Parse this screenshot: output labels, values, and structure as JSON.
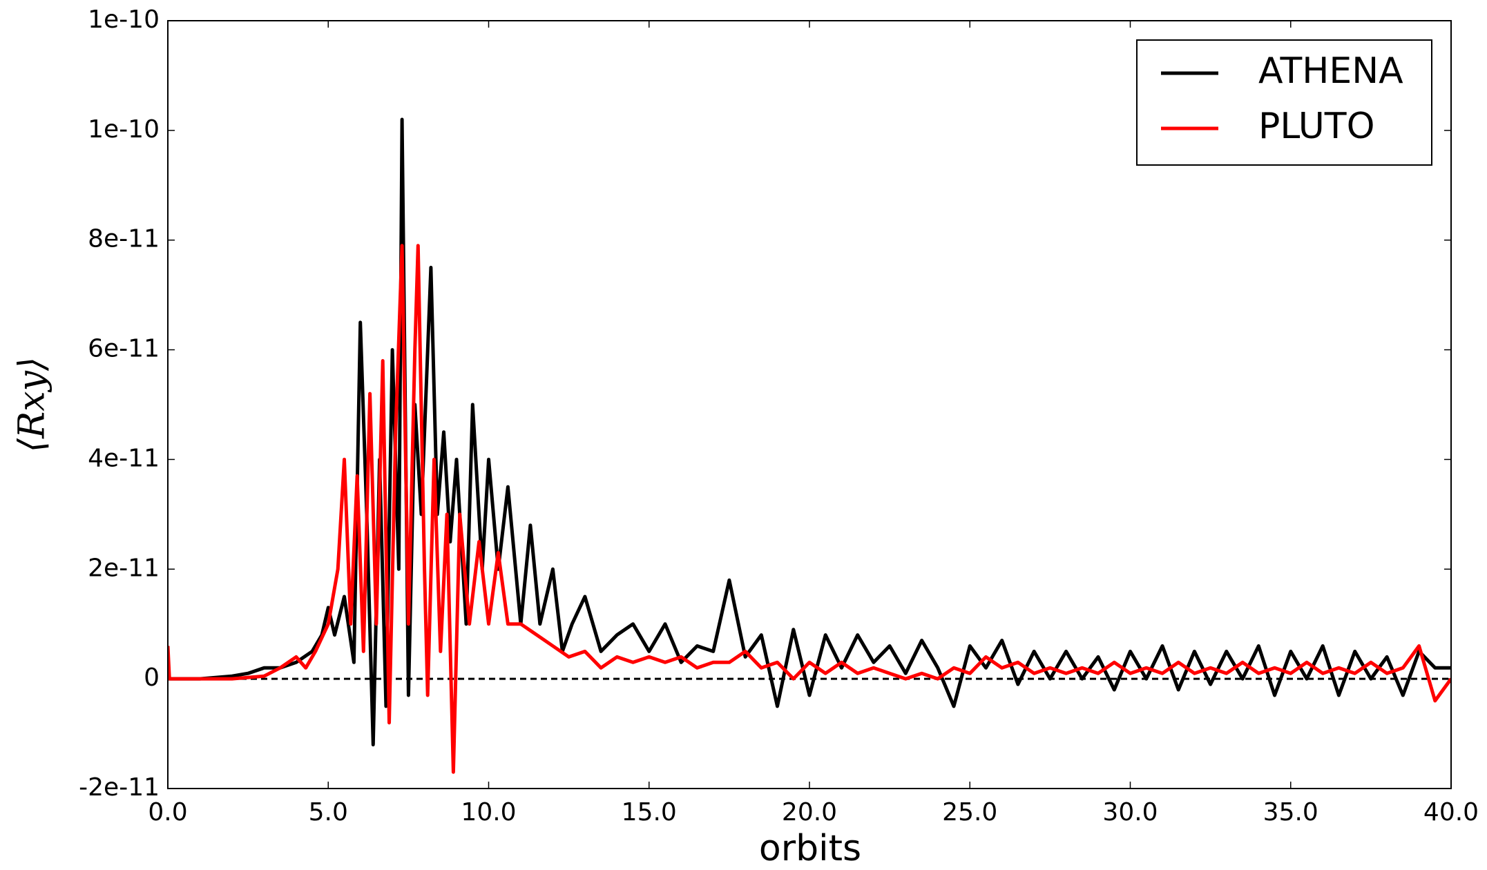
{
  "chart_data": {
    "type": "line",
    "xlabel": "orbits",
    "ylabel": "⟨Rxy⟩",
    "xlim": [
      0,
      40
    ],
    "ylim": [
      -2e-11,
      1.2e-10
    ],
    "xticks": [
      {
        "value": 0,
        "label": "0.0"
      },
      {
        "value": 5,
        "label": "5.0"
      },
      {
        "value": 10,
        "label": "10.0"
      },
      {
        "value": 15,
        "label": "15.0"
      },
      {
        "value": 20,
        "label": "20.0"
      },
      {
        "value": 25,
        "label": "25.0"
      },
      {
        "value": 30,
        "label": "30.0"
      },
      {
        "value": 35,
        "label": "35.0"
      },
      {
        "value": 40,
        "label": "40.0"
      }
    ],
    "yticks": [
      -2e-11,
      0,
      2e-11,
      4e-11,
      6e-11,
      8e-11,
      1e-10,
      {
        "value": 1.2e-10,
        "label": "1e-10"
      }
    ],
    "hlines": [
      0
    ],
    "legend": "upper right",
    "series": [
      {
        "name": "ATHENA",
        "color": "#000000",
        "x": [
          0,
          1,
          2,
          2.5,
          3,
          3.5,
          4,
          4.5,
          4.8,
          5,
          5.2,
          5.5,
          5.8,
          6,
          6.2,
          6.4,
          6.6,
          6.8,
          7,
          7.2,
          7.3,
          7.5,
          7.7,
          7.9,
          8.2,
          8.4,
          8.6,
          8.8,
          9,
          9.3,
          9.5,
          9.8,
          10,
          10.3,
          10.6,
          11,
          11.3,
          11.6,
          12,
          12.3,
          12.6,
          13,
          13.5,
          14,
          14.5,
          15,
          15.5,
          16,
          16.5,
          17,
          17.5,
          18,
          18.5,
          19,
          19.5,
          20,
          20.5,
          21,
          21.5,
          22,
          22.5,
          23,
          23.5,
          24,
          24.5,
          25,
          25.5,
          26,
          26.5,
          27,
          27.5,
          28,
          28.5,
          29,
          29.5,
          30,
          30.5,
          31,
          31.5,
          32,
          32.5,
          33,
          33.5,
          34,
          34.5,
          35,
          35.5,
          36,
          36.5,
          37,
          37.5,
          38,
          38.5,
          39,
          39.5,
          40
        ],
        "values": [
          0,
          0,
          5e-13,
          1e-12,
          2e-12,
          2e-12,
          3e-12,
          5e-12,
          8e-12,
          1.3e-11,
          8e-12,
          1.5e-11,
          3e-12,
          6.5e-11,
          3e-11,
          -1.2e-11,
          4e-11,
          -5e-12,
          6e-11,
          2e-11,
          1.02e-10,
          -3e-12,
          5e-11,
          3e-11,
          7.5e-11,
          3e-11,
          4.5e-11,
          2.5e-11,
          4e-11,
          1e-11,
          5e-11,
          2e-11,
          4e-11,
          2e-11,
          3.5e-11,
          1e-11,
          2.8e-11,
          1e-11,
          2e-11,
          5e-12,
          1e-11,
          1.5e-11,
          5e-12,
          8e-12,
          1e-11,
          5e-12,
          1e-11,
          3e-12,
          6e-12,
          5e-12,
          1.8e-11,
          4e-12,
          8e-12,
          -5e-12,
          9e-12,
          -3e-12,
          8e-12,
          2e-12,
          8e-12,
          3e-12,
          6e-12,
          1e-12,
          7e-12,
          2e-12,
          -5e-12,
          6e-12,
          2e-12,
          7e-12,
          -1e-12,
          5e-12,
          0,
          5e-12,
          0,
          4e-12,
          -2e-12,
          5e-12,
          0,
          6e-12,
          -2e-12,
          5e-12,
          -1e-12,
          5e-12,
          0,
          6e-12,
          -3e-12,
          5e-12,
          0,
          6e-12,
          -3e-12,
          5e-12,
          0,
          4e-12,
          -3e-12,
          5e-12,
          2e-12,
          2e-12
        ]
      },
      {
        "name": "PLUTO",
        "color": "#ff0000",
        "x": [
          0,
          0.05,
          1,
          2,
          3,
          3.5,
          4,
          4.3,
          4.6,
          5,
          5.3,
          5.5,
          5.7,
          5.9,
          6.1,
          6.3,
          6.5,
          6.7,
          6.9,
          7.1,
          7.3,
          7.5,
          7.7,
          7.8,
          8,
          8.1,
          8.3,
          8.5,
          8.7,
          8.9,
          9.1,
          9.4,
          9.7,
          10,
          10.3,
          10.6,
          11,
          11.5,
          12,
          12.5,
          13,
          13.5,
          14,
          14.5,
          15,
          15.5,
          16,
          16.5,
          17,
          17.5,
          18,
          18.5,
          19,
          19.5,
          20,
          20.5,
          21,
          21.5,
          22,
          22.5,
          23,
          23.5,
          24,
          24.5,
          25,
          25.5,
          26,
          26.5,
          27,
          27.5,
          28,
          28.5,
          29,
          29.5,
          30,
          30.5,
          31,
          31.5,
          32,
          32.5,
          33,
          33.5,
          34,
          34.5,
          35,
          35.5,
          36,
          36.5,
          37,
          37.5,
          38,
          38.5,
          39,
          39.5,
          40
        ],
        "values": [
          6e-12,
          0,
          0,
          0,
          5e-13,
          2e-12,
          4e-12,
          2e-12,
          5e-12,
          1e-11,
          2e-11,
          4e-11,
          1e-11,
          3.7e-11,
          5e-12,
          5.2e-11,
          1e-11,
          5.8e-11,
          -8e-12,
          4.5e-11,
          7.9e-11,
          1e-11,
          6e-11,
          7.9e-11,
          2e-11,
          -3e-12,
          4e-11,
          5e-12,
          3e-11,
          -1.7e-11,
          3e-11,
          1e-11,
          2.5e-11,
          1e-11,
          2.3e-11,
          1e-11,
          1e-11,
          8e-12,
          6e-12,
          4e-12,
          5e-12,
          2e-12,
          4e-12,
          3e-12,
          4e-12,
          3e-12,
          4e-12,
          2e-12,
          3e-12,
          3e-12,
          5e-12,
          2e-12,
          3e-12,
          0,
          3e-12,
          1e-12,
          3e-12,
          1e-12,
          2e-12,
          1e-12,
          0,
          1e-12,
          0,
          2e-12,
          1e-12,
          4e-12,
          2e-12,
          3e-12,
          1e-12,
          2e-12,
          1e-12,
          2e-12,
          1e-12,
          3e-12,
          1e-12,
          2e-12,
          1e-12,
          3e-12,
          1e-12,
          2e-12,
          1e-12,
          3e-12,
          1e-12,
          2e-12,
          1e-12,
          3e-12,
          1e-12,
          2e-12,
          1e-12,
          3e-12,
          1e-12,
          2e-12,
          6e-12,
          -4e-12,
          0
        ]
      }
    ]
  }
}
